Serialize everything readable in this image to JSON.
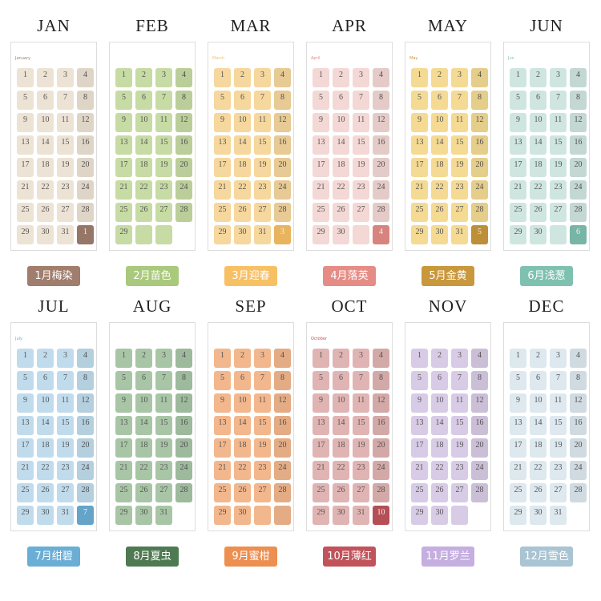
{
  "months": [
    {
      "name": "JAN",
      "label": "1月梅染",
      "header": "January",
      "days": [
        1,
        2,
        3,
        4,
        5,
        6,
        7,
        8,
        9,
        10,
        11,
        12,
        13,
        14,
        15,
        16,
        17,
        18,
        19,
        20,
        21,
        22,
        23,
        24,
        25,
        26,
        27,
        28,
        29,
        30,
        31
      ],
      "next": "1",
      "empty_tiles": 0,
      "tile_color": "#ede3d4",
      "accent_color": "#a07d6c"
    },
    {
      "name": "FEB",
      "label": "2月苗色",
      "days": [
        1,
        2,
        3,
        4,
        5,
        6,
        7,
        8,
        9,
        10,
        11,
        12,
        13,
        14,
        15,
        16,
        17,
        18,
        19,
        20,
        21,
        22,
        23,
        24,
        25,
        26,
        27,
        28,
        29
      ],
      "empty_tiles": 2,
      "tile_color": "#c7dba4",
      "accent_color": "#a9c97c"
    },
    {
      "name": "MAR",
      "label": "3月迎春",
      "header": "March",
      "days": [
        1,
        2,
        3,
        4,
        5,
        6,
        7,
        8,
        9,
        10,
        11,
        12,
        13,
        14,
        15,
        16,
        17,
        18,
        19,
        20,
        21,
        22,
        23,
        24,
        25,
        26,
        27,
        28,
        29,
        30,
        31
      ],
      "next": "3",
      "empty_tiles": 0,
      "tile_color": "#f6d79d",
      "accent_color": "#f8c064"
    },
    {
      "name": "APR",
      "label": "4月落英",
      "header": "April",
      "days": [
        1,
        2,
        3,
        4,
        5,
        6,
        7,
        8,
        9,
        10,
        11,
        12,
        13,
        14,
        15,
        16,
        17,
        18,
        19,
        20,
        21,
        22,
        23,
        24,
        25,
        26,
        27,
        28,
        29,
        30
      ],
      "next": "4",
      "empty_tiles": 1,
      "tile_color": "#f3d8d5",
      "accent_color": "#e68c86"
    },
    {
      "name": "MAY",
      "label": "5月金黄",
      "header": "May",
      "days": [
        1,
        2,
        3,
        4,
        5,
        6,
        7,
        8,
        9,
        10,
        11,
        12,
        13,
        14,
        15,
        16,
        17,
        18,
        19,
        20,
        21,
        22,
        23,
        24,
        25,
        26,
        27,
        28,
        29,
        30,
        31
      ],
      "next": "5",
      "empty_tiles": 0,
      "tile_color": "#f4da93",
      "accent_color": "#c9983c"
    },
    {
      "name": "JUN",
      "label": "6月浅葱",
      "header": "Jun",
      "days": [
        1,
        2,
        3,
        4,
        5,
        6,
        7,
        8,
        9,
        10,
        11,
        12,
        13,
        14,
        15,
        16,
        17,
        18,
        19,
        20,
        21,
        22,
        23,
        24,
        25,
        26,
        27,
        28,
        29,
        30
      ],
      "next": "6",
      "empty_tiles": 1,
      "tile_color": "#cfe6e0",
      "accent_color": "#7fc1b1"
    },
    {
      "name": "JUL",
      "label": "7月绀碧",
      "header": "July",
      "days": [
        1,
        2,
        3,
        4,
        5,
        6,
        7,
        8,
        9,
        10,
        11,
        12,
        13,
        14,
        15,
        16,
        17,
        18,
        19,
        20,
        21,
        22,
        23,
        24,
        25,
        26,
        27,
        28,
        29,
        30,
        31
      ],
      "next": "7",
      "empty_tiles": 0,
      "tile_color": "#c0dcec",
      "accent_color": "#6aaed6"
    },
    {
      "name": "AUG",
      "label": "8月夏虫",
      "days": [
        1,
        2,
        3,
        4,
        5,
        6,
        7,
        8,
        9,
        10,
        11,
        12,
        13,
        14,
        15,
        16,
        17,
        18,
        19,
        20,
        21,
        22,
        23,
        24,
        25,
        26,
        27,
        28,
        29,
        30,
        31
      ],
      "empty_tiles": 0,
      "tile_color": "#a8c6a6",
      "accent_color": "#4f7a51"
    },
    {
      "name": "SEP",
      "label": "9月蜜柑",
      "days": [
        1,
        2,
        3,
        4,
        5,
        6,
        7,
        8,
        9,
        10,
        11,
        12,
        13,
        14,
        15,
        16,
        17,
        18,
        19,
        20,
        21,
        22,
        23,
        24,
        25,
        26,
        27,
        28,
        29,
        30
      ],
      "empty_tiles": 2,
      "tile_color": "#f3b78d",
      "accent_color": "#ec8f50"
    },
    {
      "name": "OCT",
      "label": "10月薄红",
      "header": "October",
      "days": [
        1,
        2,
        3,
        4,
        5,
        6,
        7,
        8,
        9,
        10,
        11,
        12,
        13,
        14,
        15,
        16,
        17,
        18,
        19,
        20,
        21,
        22,
        23,
        24,
        25,
        26,
        27,
        28,
        29,
        30,
        31
      ],
      "next": "10",
      "empty_tiles": 0,
      "tile_color": "#e0b4b3",
      "accent_color": "#c1535a"
    },
    {
      "name": "NOV",
      "label": "11月罗兰",
      "days": [
        1,
        2,
        3,
        4,
        5,
        6,
        7,
        8,
        9,
        10,
        11,
        12,
        13,
        14,
        15,
        16,
        17,
        18,
        19,
        20,
        21,
        22,
        23,
        24,
        25,
        26,
        27,
        28,
        29,
        30
      ],
      "empty_tiles": 1,
      "tile_color": "#d8cbe6",
      "accent_color": "#c5aee0"
    },
    {
      "name": "DEC",
      "label": "12月雪色",
      "days": [
        1,
        2,
        3,
        4,
        5,
        6,
        7,
        8,
        9,
        10,
        11,
        12,
        13,
        14,
        15,
        16,
        17,
        18,
        19,
        20,
        21,
        22,
        23,
        24,
        25,
        26,
        27,
        28,
        29,
        30,
        31
      ],
      "empty_tiles": 0,
      "tile_color": "#dde8ef",
      "accent_color": "#a9c4d3"
    }
  ]
}
